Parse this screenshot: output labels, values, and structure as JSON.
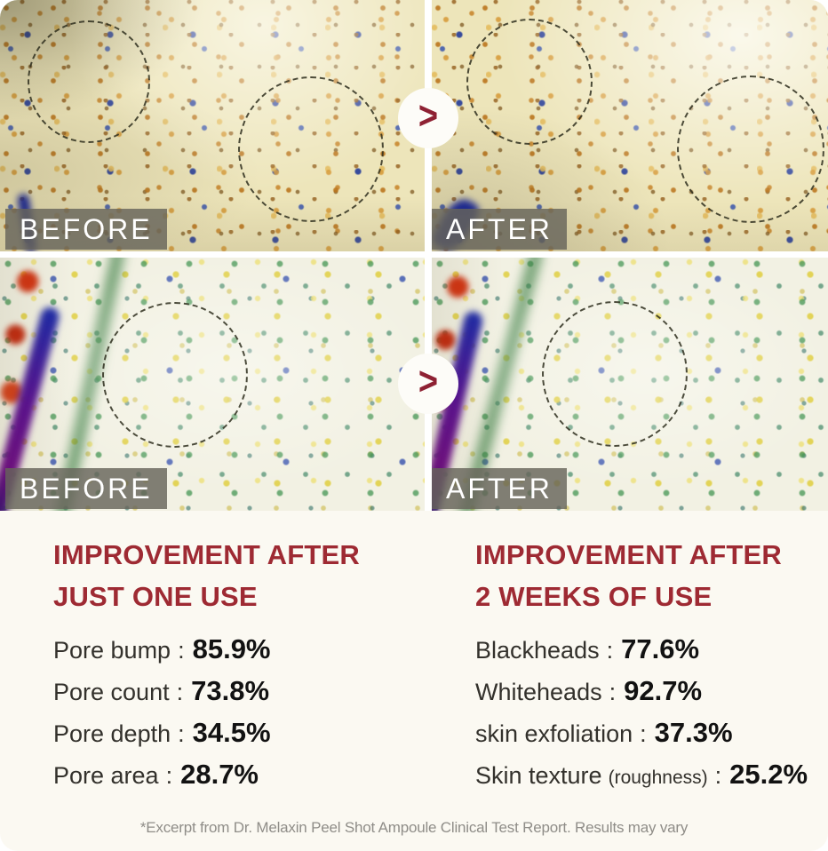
{
  "colors": {
    "heading_red": "#9e2a33",
    "chevron_red": "#8e2133",
    "label_bar_gray": "#66645a",
    "label_text": "#ffffff",
    "results_background": "#fbf9f2",
    "footnote_gray": "#8f8d88"
  },
  "comparison": {
    "row1": {
      "before": "BEFORE",
      "after": "AFTER",
      "arrow": ">"
    },
    "row2": {
      "before": "BEFORE",
      "after": "AFTER",
      "arrow": ">"
    }
  },
  "results": {
    "separator": ":",
    "left": {
      "title_lines": [
        "IMPROVEMENT AFTER",
        "JUST ONE USE"
      ],
      "stats": [
        {
          "label": "Pore bump",
          "value": "85.9%"
        },
        {
          "label": "Pore count",
          "value": "73.8%"
        },
        {
          "label": "Pore depth",
          "value": "34.5%"
        },
        {
          "label": "Pore area",
          "value": "28.7%"
        }
      ]
    },
    "right": {
      "title_lines": [
        "IMPROVEMENT AFTER",
        "2 WEEKS OF USE"
      ],
      "stats": [
        {
          "label": "Blackheads",
          "value": "77.6%"
        },
        {
          "label": "Whiteheads",
          "value": "92.7%"
        },
        {
          "label": "skin exfoliation",
          "value": "37.3%"
        },
        {
          "label": "Skin texture",
          "note": "(roughness)",
          "value": "25.2%"
        }
      ]
    }
  },
  "footnote": "*Excerpt from Dr. Melaxin Peel Shot Ampoule Clinical Test Report. Results may vary"
}
